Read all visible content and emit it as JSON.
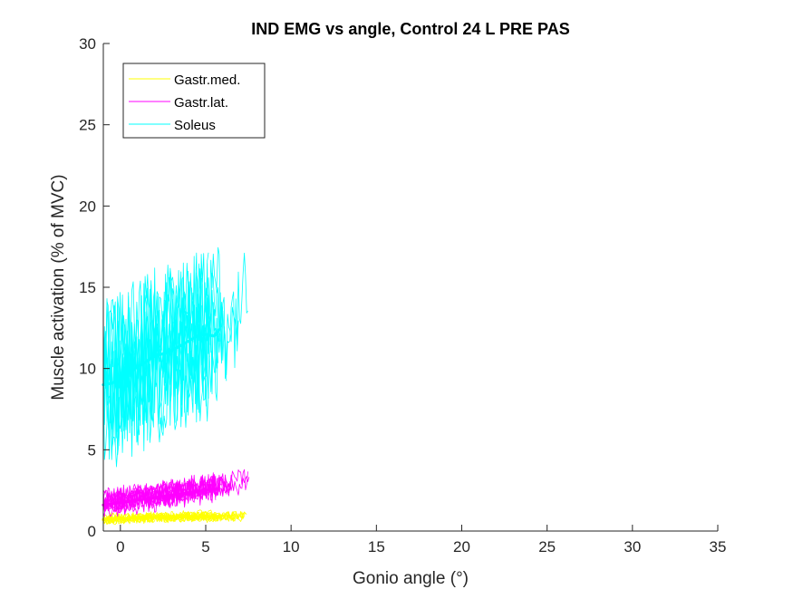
{
  "chart_data": {
    "type": "line",
    "title": "IND EMG vs angle, Control 24 L PRE PAS",
    "xlabel": "Gonio angle (°)",
    "ylabel": "Muscle activation (% of MVC)",
    "xlim": [
      -1,
      35
    ],
    "ylim": [
      0,
      30
    ],
    "xticks": [
      0,
      5,
      10,
      15,
      20,
      25,
      30,
      35
    ],
    "yticks": [
      0,
      5,
      10,
      15,
      20,
      25,
      30
    ],
    "legend_position": "top-left",
    "grid": false,
    "series": [
      {
        "name": "Gastr.med.",
        "color": "#ffff00",
        "mean": {
          "x": [
            -1,
            0,
            1,
            2,
            3,
            4,
            5,
            5.8
          ],
          "y": [
            0.7,
            0.75,
            0.8,
            0.85,
            0.85,
            0.9,
            0.9,
            0.9
          ]
        },
        "trials": {
          "count": 10,
          "x_range": [
            -1,
            7.6
          ],
          "y_range": [
            0.4,
            1.6
          ]
        }
      },
      {
        "name": "Gastr.lat.",
        "color": "#ff00ff",
        "mean": {
          "x": [
            -1,
            0,
            1,
            2,
            3,
            4,
            5,
            5.8
          ],
          "y": [
            1.6,
            1.75,
            1.9,
            2.05,
            2.2,
            2.35,
            2.5,
            2.6
          ]
        },
        "trials": {
          "count": 10,
          "x_range": [
            -1,
            7.6
          ],
          "y_range": [
            0.9,
            4.1
          ]
        }
      },
      {
        "name": "Soleus",
        "color": "#00ffff",
        "mean": {
          "x": [
            -1,
            -0.5,
            0,
            0.5,
            1,
            1.5,
            2,
            2.5,
            3,
            3.5,
            4,
            4.5,
            5,
            5.5,
            5.8
          ],
          "y": [
            9.0,
            9.1,
            9.3,
            9.7,
            10.1,
            10.4,
            10.8,
            10.9,
            11.1,
            11.4,
            11.7,
            12.0,
            12.1,
            12.0,
            12.4
          ]
        },
        "trials": {
          "count": 10,
          "x_range": [
            -1,
            7.6
          ],
          "y_range": [
            3.7,
            20.1
          ]
        }
      }
    ]
  }
}
